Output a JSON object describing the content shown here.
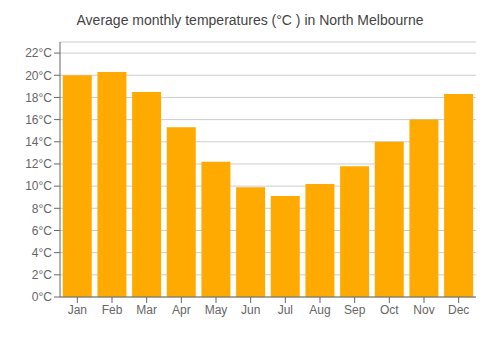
{
  "chart_data": {
    "type": "bar",
    "title": "Average monthly temperatures (°C ) in North Melbourne",
    "categories": [
      "Jan",
      "Feb",
      "Mar",
      "Apr",
      "May",
      "Jun",
      "Jul",
      "Aug",
      "Sep",
      "Oct",
      "Nov",
      "Dec"
    ],
    "values": [
      20.0,
      20.3,
      18.5,
      15.3,
      12.2,
      9.9,
      9.1,
      10.2,
      11.8,
      14.0,
      16.0,
      18.3
    ],
    "color": "#FFAA00",
    "ylim": [
      0,
      23
    ],
    "yticks": [
      {
        "value": 0,
        "label": "0°C"
      },
      {
        "value": 2,
        "label": "2°C"
      },
      {
        "value": 4,
        "label": "4°C"
      },
      {
        "value": 6,
        "label": "6°C"
      },
      {
        "value": 8,
        "label": "8°C"
      },
      {
        "value": 10,
        "label": "10°C"
      },
      {
        "value": 12,
        "label": "12°C"
      },
      {
        "value": 14,
        "label": "14°C"
      },
      {
        "value": 16,
        "label": "16°C"
      },
      {
        "value": 18,
        "label": "18°C"
      },
      {
        "value": 20,
        "label": "20°C"
      },
      {
        "value": 22,
        "label": "22°C"
      }
    ],
    "grid": true
  }
}
